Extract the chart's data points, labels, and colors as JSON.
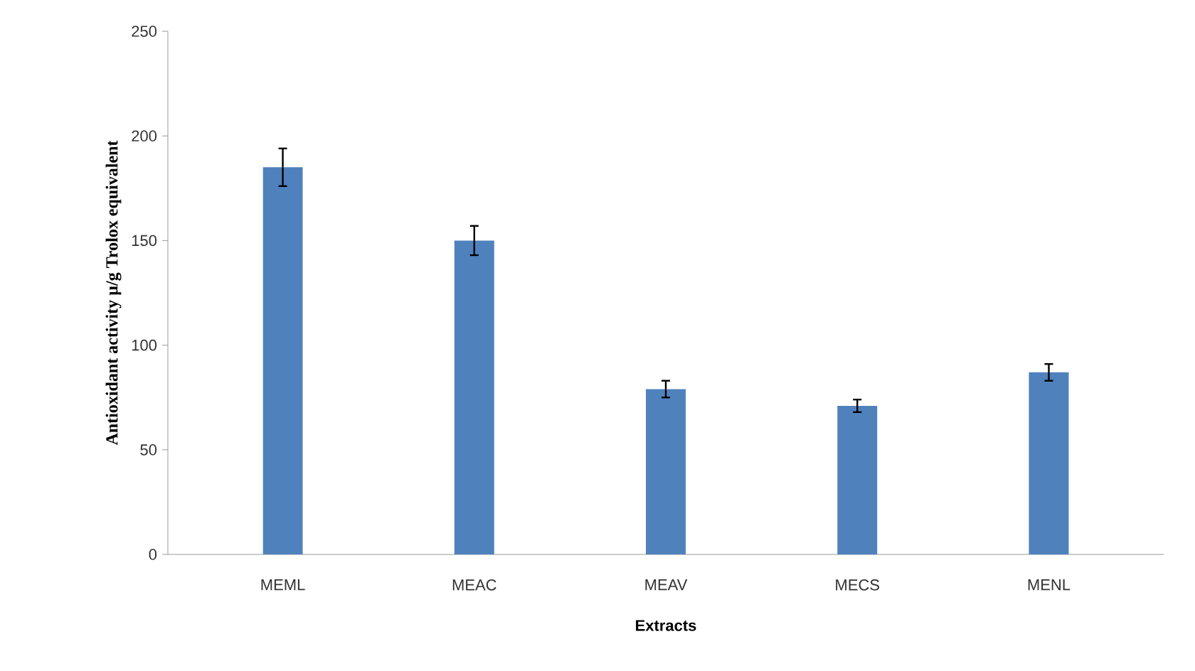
{
  "chart_data": {
    "type": "bar",
    "xlabel": "Extracts",
    "ylabel": "Antioxidant activity µ/g Trolox equivalent",
    "categories": [
      "MEML",
      "MEAC",
      "MEAV",
      "MECS",
      "MENL"
    ],
    "values": [
      185,
      150,
      79,
      71,
      87
    ],
    "errors": [
      9,
      7,
      4,
      3,
      4
    ],
    "color": "#4f81bd",
    "ylim": [
      0,
      250
    ],
    "yticks": [
      0,
      50,
      100,
      150,
      200,
      250
    ],
    "grid": false
  }
}
